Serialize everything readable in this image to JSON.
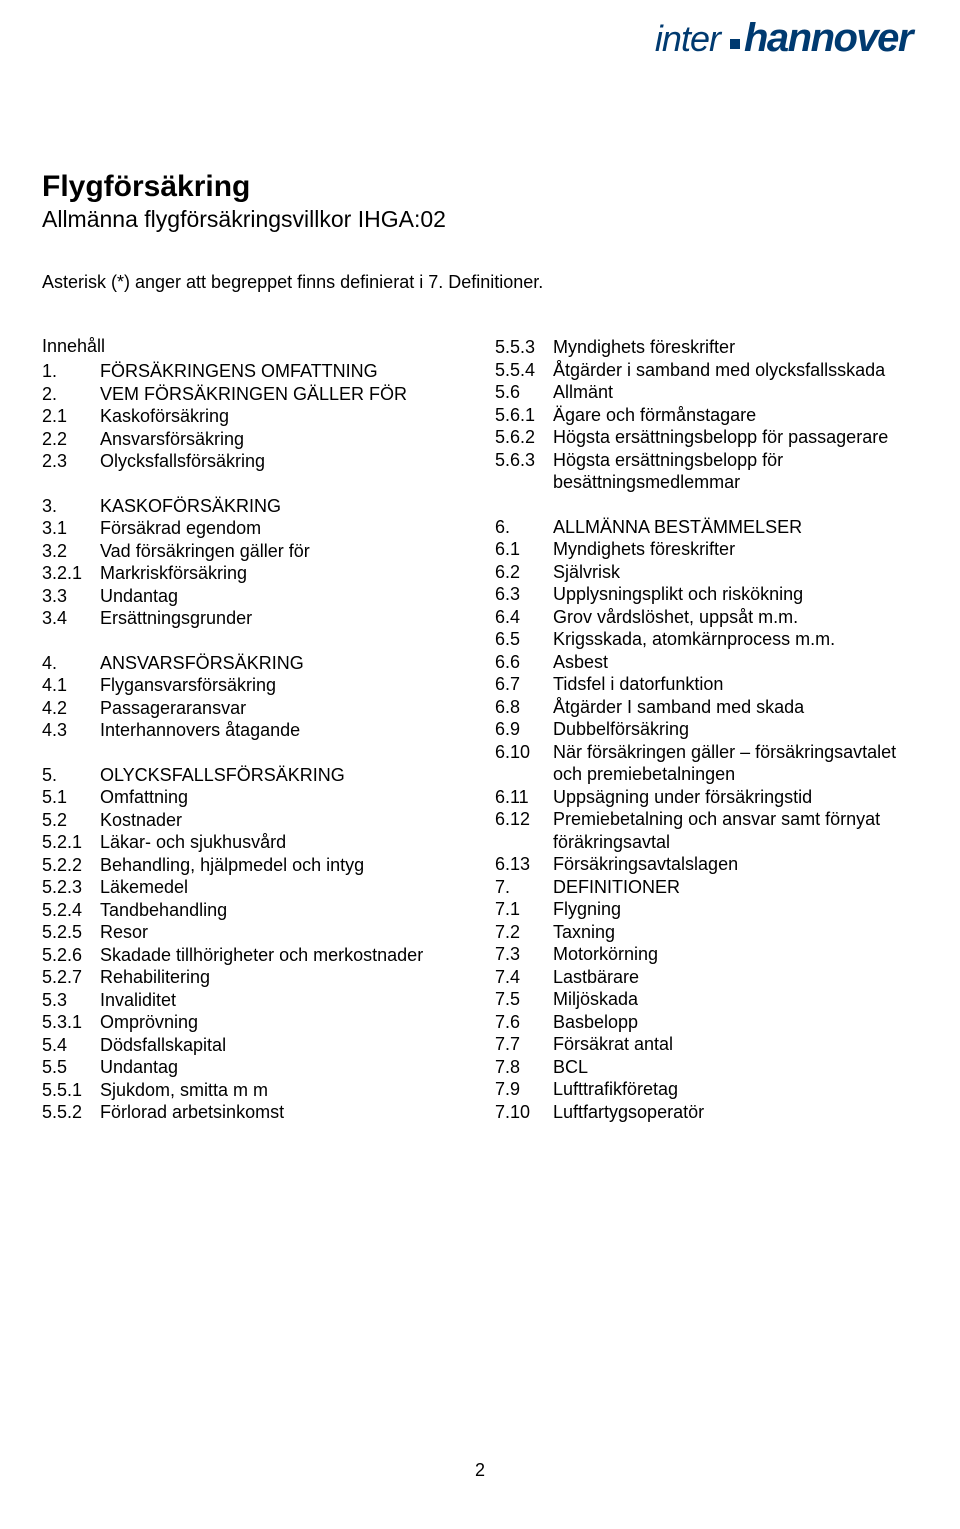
{
  "logo": {
    "part1": "inter",
    "part2": "hannover"
  },
  "header": {
    "title": "Flygförsäkring",
    "subtitle": "Allmänna flygförsäkringsvillkor IHGA:02"
  },
  "asterisk_note": "Asterisk (*) anger att begreppet finns definierat i 7. Definitioner.",
  "innehall": "Innehåll",
  "left_sections": [
    [
      {
        "num": "1.",
        "txt": "FÖRSÄKRINGENS OMFATTNING"
      },
      {
        "num": "2.",
        "txt": "VEM FÖRSÄKRINGEN GÄLLER FÖR"
      },
      {
        "num": "2.1",
        "txt": "Kaskoförsäkring"
      },
      {
        "num": "2.2",
        "txt": "Ansvarsförsäkring"
      },
      {
        "num": "2.3",
        "txt": "Olycksfallsförsäkring"
      }
    ],
    [
      {
        "num": "3.",
        "txt": "KASKOFÖRSÄKRING"
      },
      {
        "num": "3.1",
        "txt": "Försäkrad egendom"
      },
      {
        "num": "3.2",
        "txt": "Vad försäkringen gäller för"
      },
      {
        "num": "3.2.1",
        "txt": "Markriskförsäkring"
      },
      {
        "num": "3.3",
        "txt": "Undantag"
      },
      {
        "num": "3.4",
        "txt": "Ersättningsgrunder"
      }
    ],
    [
      {
        "num": "4.",
        "txt": "ANSVARSFÖRSÄKRING"
      },
      {
        "num": "4.1",
        "txt": "Flygansvarsförsäkring"
      },
      {
        "num": "4.2",
        "txt": "Passageraransvar"
      },
      {
        "num": "4.3",
        "txt": "Interhannovers åtagande"
      }
    ],
    [
      {
        "num": "5.",
        "txt": "OLYCKSFALLSFÖRSÄKRING"
      },
      {
        "num": "5.1",
        "txt": "Omfattning"
      },
      {
        "num": "5.2",
        "txt": "Kostnader"
      },
      {
        "num": "5.2.1",
        "txt": "Läkar- och sjukhusvård"
      },
      {
        "num": "5.2.2",
        "txt": "Behandling, hjälpmedel och intyg"
      },
      {
        "num": "5.2.3",
        "txt": "Läkemedel"
      },
      {
        "num": "5.2.4",
        "txt": "Tandbehandling"
      },
      {
        "num": "5.2.5",
        "txt": "Resor"
      },
      {
        "num": "5.2.6",
        "txt": "Skadade tillhörigheter och merkostnader"
      },
      {
        "num": "5.2.7",
        "txt": "Rehabilitering"
      },
      {
        "num": "5.3",
        "txt": "Invaliditet"
      },
      {
        "num": "5.3.1",
        "txt": "Omprövning"
      },
      {
        "num": "5.4",
        "txt": "Dödsfallskapital"
      },
      {
        "num": "5.5",
        "txt": "Undantag"
      },
      {
        "num": "5.5.1",
        "txt": "Sjukdom, smitta m m"
      },
      {
        "num": "5.5.2",
        "txt": "Förlorad arbetsinkomst"
      }
    ]
  ],
  "right_sections": [
    [
      {
        "num": "5.5.3",
        "txt": "Myndighets föreskrifter"
      },
      {
        "num": "5.5.4",
        "txt": "Åtgärder i samband med olycksfallsskada"
      },
      {
        "num": "5.6",
        "txt": "Allmänt"
      },
      {
        "num": "5.6.1",
        "txt": "Ägare och förmånstagare"
      },
      {
        "num": "5.6.2",
        "txt": "Högsta ersättningsbelopp för passagerare"
      },
      {
        "num": "5.6.3",
        "txt": "Högsta ersättningsbelopp för besättningsmedlemmar"
      }
    ],
    [
      {
        "num": "6.",
        "txt": "ALLMÄNNA BESTÄMMELSER"
      },
      {
        "num": "6.1",
        "txt": "Myndighets föreskrifter"
      },
      {
        "num": "6.2",
        "txt": "Självrisk"
      },
      {
        "num": "6.3",
        "txt": "Upplysningsplikt och riskökning"
      },
      {
        "num": "6.4",
        "txt": "Grov vårdslöshet, uppsåt m.m."
      },
      {
        "num": "6.5",
        "txt": "Krigsskada, atomkärnprocess m.m."
      },
      {
        "num": "6.6",
        "txt": "Asbest"
      },
      {
        "num": "6.7",
        "txt": "Tidsfel i datorfunktion"
      },
      {
        "num": "6.8",
        "txt": "Åtgärder I samband med skada"
      },
      {
        "num": "6.9",
        "txt": "Dubbelförsäkring"
      },
      {
        "num": "6.10",
        "txt": "När försäkringen gäller – försäkringsavtalet och premiebetalningen"
      },
      {
        "num": "6.11",
        "txt": "Uppsägning under försäkringstid"
      },
      {
        "num": "6.12",
        "txt": "Premiebetalning och ansvar samt förnyat föräkringsavtal"
      },
      {
        "num": "6.13",
        "txt": "Försäkringsavtalslagen"
      },
      {
        "num": "7.",
        "txt": "DEFINITIONER"
      },
      {
        "num": "7.1",
        "txt": "Flygning"
      },
      {
        "num": "7.2",
        "txt": "Taxning"
      },
      {
        "num": "7.3",
        "txt": "Motorkörning"
      },
      {
        "num": "7.4",
        "txt": "Lastbärare"
      },
      {
        "num": "7.5",
        "txt": "Miljöskada"
      },
      {
        "num": "7.6",
        "txt": "Basbelopp"
      },
      {
        "num": "7.7",
        "txt": "Försäkrat antal"
      },
      {
        "num": "7.8",
        "txt": "BCL"
      },
      {
        "num": "7.9",
        "txt": "Lufttrafikföretag"
      },
      {
        "num": "7.10",
        "txt": "Luftfartygsoperatör"
      }
    ]
  ],
  "page_number": "2",
  "colors": {
    "text": "#000000",
    "logo": "#003a70",
    "background": "#ffffff"
  }
}
